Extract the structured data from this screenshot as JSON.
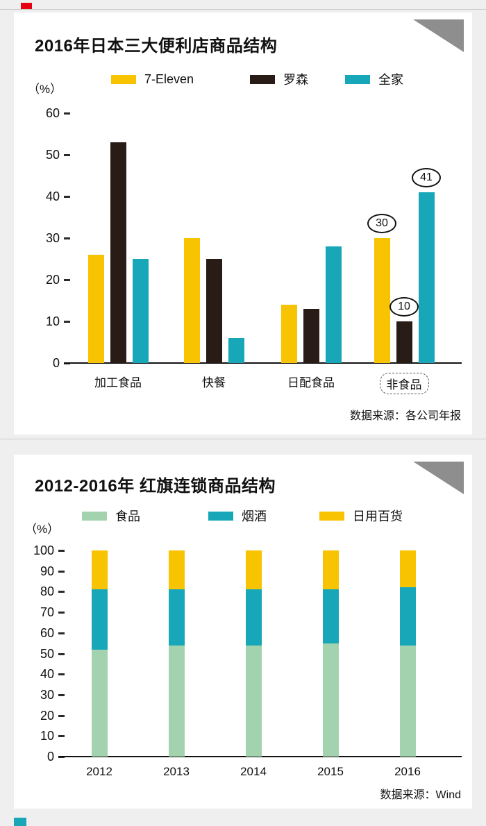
{
  "page": {
    "background": "#efefef",
    "card_background": "#ffffff",
    "divider_color": "#c9c9c9",
    "triangle_color": "#8e8e8e",
    "accent_red": "#e60012",
    "accent_teal": "#18a7b9"
  },
  "chart_data": [
    {
      "type": "bar",
      "stacked": false,
      "title": "2016年日本三大便利店商品结构",
      "unit_label": "（%）",
      "source": "数据来源：各公司年报",
      "categories": [
        "加工食品",
        "快餐",
        "日配食品",
        "非食品"
      ],
      "series": [
        {
          "name": "7-Eleven",
          "color": "#f8c301",
          "values": [
            26,
            30,
            14,
            30
          ]
        },
        {
          "name": "罗森",
          "color": "#291c16",
          "values": [
            53,
            25,
            13,
            10
          ]
        },
        {
          "name": "全家",
          "color": "#18a7b9",
          "values": [
            25,
            6,
            28,
            41
          ]
        }
      ],
      "ylim": [
        0,
        60
      ],
      "yticks": [
        0,
        10,
        20,
        30,
        40,
        50,
        60
      ],
      "grid": false,
      "legend_position": "top",
      "annotated_category": "非食品",
      "annotations": [
        {
          "series": "7-Eleven",
          "category": "非食品",
          "label": "30"
        },
        {
          "series": "罗森",
          "category": "非食品",
          "label": "10"
        },
        {
          "series": "全家",
          "category": "非食品",
          "label": "41"
        }
      ]
    },
    {
      "type": "bar",
      "stacked": true,
      "title": "2012-2016年 红旗连锁商品结构",
      "unit_label": "（%）",
      "source": "数据来源：Wind",
      "categories": [
        "2012",
        "2013",
        "2014",
        "2015",
        "2016"
      ],
      "series": [
        {
          "name": "食品",
          "color": "#a3d3ae",
          "values": [
            52,
            54,
            54,
            55,
            54
          ]
        },
        {
          "name": "烟酒",
          "color": "#18a7b9",
          "values": [
            29,
            27,
            27,
            26,
            28
          ]
        },
        {
          "name": "日用百货",
          "color": "#f8c301",
          "values": [
            19,
            19,
            19,
            19,
            18
          ]
        }
      ],
      "ylim": [
        0,
        100
      ],
      "yticks": [
        0,
        10,
        20,
        30,
        40,
        50,
        60,
        70,
        80,
        90,
        100
      ],
      "grid": false,
      "legend_position": "top"
    }
  ]
}
